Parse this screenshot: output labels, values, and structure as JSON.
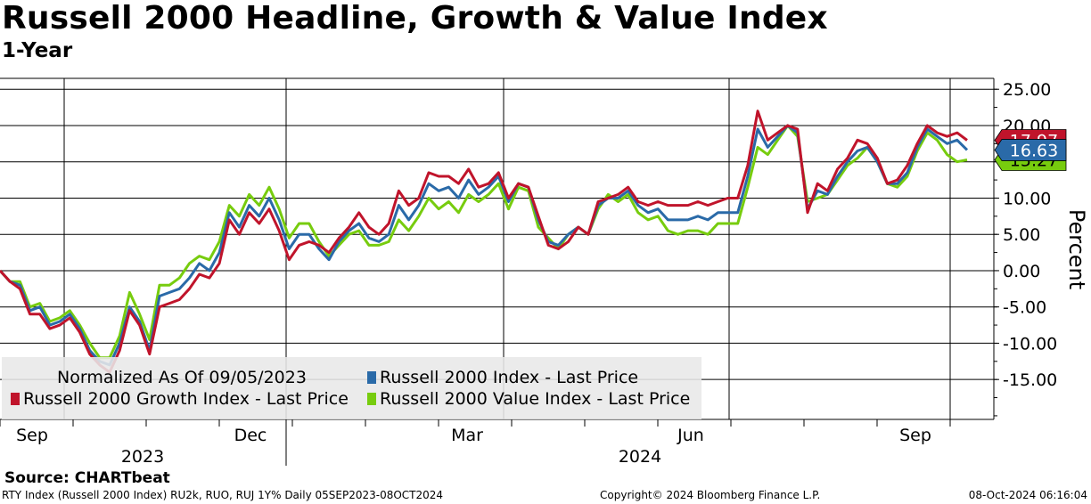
{
  "title": "Russell 2000 Headline, Growth & Value Index",
  "subtitle": "1-Year",
  "source": "Source: CHARTbeat",
  "footer": {
    "left": "RTY Index (Russell 2000 Index) RU2k, RUO, RUJ 1Y%  Daily 05SEP2023-08OCT2024",
    "center": "Copyright© 2024 Bloomberg Finance L.P.",
    "right": "08-Oct-2024 06:16:04"
  },
  "legend": {
    "note": "Normalized As Of 09/05/2023",
    "items": [
      "Russell 2000 Index - Last Price",
      "Russell 2000 Growth Index - Last Price",
      "Russell 2000 Value Index - Last Price"
    ]
  },
  "colors": {
    "headline": "#2a6aa8",
    "growth": "#c0142b",
    "value": "#77cc0e",
    "grid": "#000000"
  },
  "chart_data": {
    "type": "line",
    "x_axis": {
      "months": [
        "Sep",
        "Dec",
        "Mar",
        "Jun",
        "Sep"
      ],
      "years": [
        "2023",
        "2024"
      ]
    },
    "y_axis": {
      "label": "Percent",
      "ticks": [
        "25.00",
        "20.00",
        "15.00",
        "10.00",
        "5.00",
        "0.00",
        "-5.00",
        "-10.00",
        "-15.00"
      ],
      "tick_values": [
        25,
        20,
        15,
        10,
        5,
        0,
        -5,
        -10,
        -15
      ],
      "ylim": [
        -20.5,
        26.5
      ]
    },
    "last_values": {
      "growth": "17.97",
      "headline": "16.63",
      "value": "15.27"
    },
    "series": [
      {
        "name": "Russell 2000 Index - Last Price",
        "key": "headline",
        "values": [
          0,
          -1.5,
          -2,
          -5.5,
          -5,
          -7.5,
          -7,
          -6,
          -8,
          -11,
          -12.5,
          -13,
          -10,
          -5,
          -7,
          -11,
          -3.5,
          -3,
          -2.5,
          -1,
          1,
          0,
          2.5,
          8,
          6,
          9,
          7.5,
          10,
          7,
          3,
          5,
          5,
          3,
          1.5,
          4,
          5.5,
          6.5,
          4.5,
          4,
          5,
          9,
          7,
          9,
          12,
          11,
          11.5,
          10,
          12.5,
          10.5,
          11.5,
          13,
          9.5,
          12,
          11.5,
          7,
          4,
          3.5,
          5,
          6,
          5,
          9,
          10,
          10,
          11,
          9,
          8,
          8.5,
          7,
          7,
          7,
          7.5,
          7,
          8,
          8,
          8,
          13,
          19.5,
          17,
          18.5,
          20,
          19,
          8.5,
          11,
          10.5,
          13,
          15,
          16.5,
          17,
          15,
          12,
          12,
          13.5,
          17,
          19.5,
          18.5,
          17.5,
          18,
          16.63
        ]
      },
      {
        "name": "Russell 2000 Growth Index - Last Price",
        "key": "growth",
        "values": [
          0,
          -1.5,
          -2.5,
          -6,
          -6,
          -8,
          -7.5,
          -6.5,
          -8.5,
          -11.5,
          -13,
          -14,
          -11,
          -5.5,
          -7.5,
          -11.5,
          -5,
          -4.5,
          -4,
          -2.5,
          -0.5,
          -1,
          1,
          7,
          5,
          8,
          6.5,
          8.5,
          5.5,
          1.5,
          3.5,
          4,
          3.5,
          2.5,
          4.5,
          6,
          8,
          6,
          5,
          6.5,
          11,
          9,
          10,
          13.5,
          13,
          13,
          12,
          14,
          11.5,
          12,
          13.5,
          10,
          12,
          11.5,
          7.5,
          3.5,
          3,
          4,
          6,
          5,
          9.5,
          10,
          10.5,
          11.5,
          9.5,
          9,
          9.5,
          9,
          9,
          9,
          9.5,
          9,
          9.5,
          10,
          10,
          14.5,
          22,
          18,
          19,
          20,
          19.5,
          8,
          12,
          11,
          14,
          15.5,
          18,
          17.5,
          15.5,
          12,
          12.5,
          14.5,
          17.5,
          20,
          19,
          18.5,
          19,
          17.97
        ]
      },
      {
        "name": "Russell 2000 Value Index - Last Price",
        "key": "value",
        "values": [
          0,
          -1.5,
          -1.5,
          -5,
          -4.5,
          -7,
          -6.5,
          -5.5,
          -7.5,
          -10,
          -12,
          -12,
          -9,
          -3,
          -6,
          -9.5,
          -2,
          -2,
          -1,
          1,
          2,
          1.5,
          4,
          9,
          7.5,
          10.5,
          9,
          11.5,
          8.5,
          4.5,
          6.5,
          6.5,
          4,
          2,
          3.5,
          5,
          5.5,
          3.5,
          3.5,
          4,
          7,
          5.5,
          7.5,
          10,
          8.5,
          9.5,
          8,
          10.5,
          9.5,
          10.5,
          12,
          8.5,
          11.5,
          11,
          6,
          4.5,
          3,
          5,
          6,
          5,
          8.5,
          10.5,
          9.5,
          10.5,
          8,
          7,
          7.5,
          5.5,
          5,
          5.5,
          5.5,
          5,
          6.5,
          6.5,
          6.5,
          11.5,
          17,
          16,
          18,
          20,
          18.5,
          9.5,
          10,
          10.5,
          12.5,
          14.5,
          15.5,
          17,
          15,
          12,
          11.5,
          13,
          16.5,
          19,
          18,
          16,
          15,
          15.27
        ]
      }
    ]
  }
}
